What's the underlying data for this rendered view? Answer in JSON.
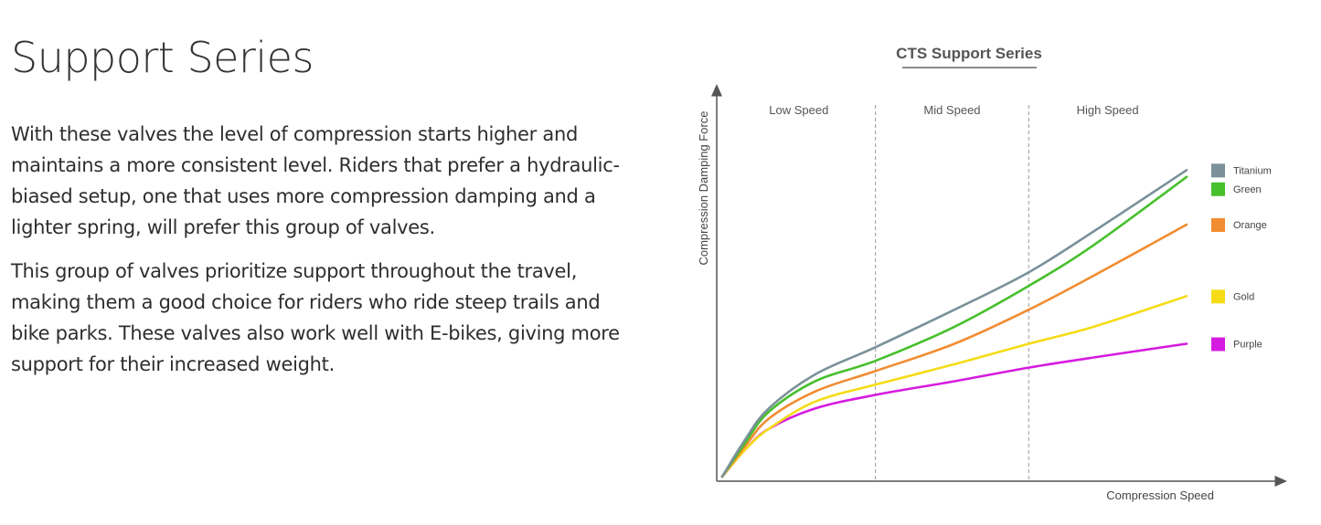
{
  "page": {
    "title": "Support Series",
    "paragraphs": [
      "With these valves the level of compression starts higher and maintains a more consistent level. Riders that prefer a hydraulic-biased setup, one that uses more compression damping and a lighter spring, will prefer this group of valves.",
      "This group of valves prioritize support throughout the travel, making them a good choice for riders who ride steep trails and bike parks. These valves also work well with E-bikes, giving more support for their increased weight."
    ]
  },
  "chart_data": {
    "type": "line",
    "title": "CTS Support Series",
    "xlabel": "Compression Speed",
    "ylabel": "Compression Damping Force",
    "xlim": [
      0,
      1
    ],
    "ylim": [
      0,
      1
    ],
    "grid": false,
    "zones": [
      {
        "label": "Low Speed",
        "from": 0.0,
        "to": 0.33
      },
      {
        "label": "Mid Speed",
        "from": 0.33,
        "to": 0.66
      },
      {
        "label": "High Speed",
        "from": 0.66,
        "to": 1.0
      }
    ],
    "legend_position": "right",
    "x": [
      0.0,
      0.05,
      0.1,
      0.2,
      0.33,
      0.5,
      0.66,
      0.8,
      1.0
    ],
    "series": [
      {
        "name": "Titanium",
        "color": "#7a9199",
        "values": [
          0.0,
          0.11,
          0.2,
          0.3,
          0.38,
          0.49,
          0.6,
          0.72,
          0.9
        ]
      },
      {
        "name": "Green",
        "color": "#47c02d",
        "values": [
          0.0,
          0.1,
          0.19,
          0.28,
          0.34,
          0.44,
          0.56,
          0.68,
          0.88
        ]
      },
      {
        "name": "Orange",
        "color": "#f28c30",
        "values": [
          0.0,
          0.09,
          0.17,
          0.25,
          0.31,
          0.39,
          0.49,
          0.59,
          0.74
        ]
      },
      {
        "name": "Gold",
        "color": "#f5dc17",
        "values": [
          0.0,
          0.08,
          0.14,
          0.22,
          0.27,
          0.33,
          0.39,
          0.44,
          0.53
        ]
      },
      {
        "name": "Purple",
        "color": "#d61be0",
        "values": [
          0.0,
          0.08,
          0.14,
          0.2,
          0.24,
          0.28,
          0.32,
          0.35,
          0.39
        ]
      }
    ]
  }
}
